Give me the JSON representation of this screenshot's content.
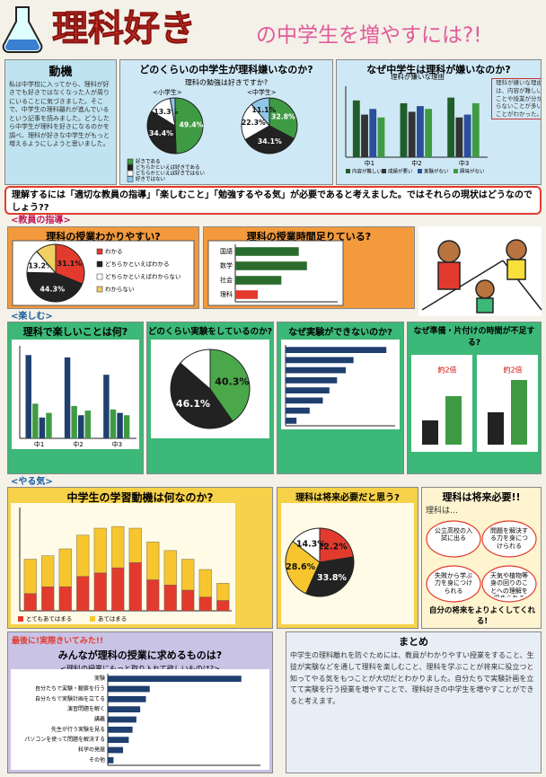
{
  "title": {
    "main": "理科好き",
    "rest": "の中学生を増やすには?!"
  },
  "motive": {
    "heading": "動機",
    "body": "私は中学校に入ってから、理科が好きでも好きではなくなった人が周りにいることに気づきました。そこで、中学生の理科離れが進んでいるという記事を読みました。どうしたら中学生が理科を好きになるのかを調べ、理科が好きな中学生がもっと増えるようにしようと思いました。"
  },
  "like": {
    "heading": "どのくらいの中学生が理科嫌いなのか?",
    "question": "理科の勉強は好きですか?",
    "colors": [
      "#3f9b43",
      "#222222",
      "#ffffff",
      "#8fc7e8"
    ],
    "pies": [
      {
        "label": "<小学生>",
        "slices": [
          {
            "value": 49.4,
            "label": "49.4%"
          },
          {
            "value": 34.4,
            "label": "34.4%"
          },
          {
            "value": 13.3,
            "label": "13.3%"
          },
          2.9
        ]
      },
      {
        "label": "<中学生>",
        "slices": [
          {
            "value": 32.8,
            "label": "32.8%"
          },
          {
            "value": 34.1,
            "label": "34.1%"
          },
          {
            "value": 22.3,
            "label": "22.3%"
          },
          {
            "value": 11.1,
            "label": "11.1%"
          }
        ]
      }
    ],
    "legend": [
      "好きである",
      "どちらかといえば好きである",
      "どちらかといえば好きではない",
      "好きではない"
    ]
  },
  "why": {
    "heading": "なぜ中学生は理科が嫌いなのか?",
    "chart_title": "理科が嫌いな理由",
    "categories": [
      "中1",
      "中2",
      "中3"
    ],
    "ylim": [
      0,
      50
    ],
    "series": [
      {
        "name": "内容が難しい",
        "color": "#1f5e2a",
        "values": [
          40,
          38,
          42
        ]
      },
      {
        "name": "成績が悪い",
        "color": "#333333",
        "values": [
          30,
          32,
          28
        ]
      },
      {
        "name": "実験がない",
        "color": "#2b4f9a",
        "values": [
          34,
          36,
          30
        ]
      },
      {
        "name": "興味がない",
        "color": "#3f9b43",
        "values": [
          28,
          34,
          38
        ]
      }
    ],
    "note": "理科が嫌いな理由は、内容が難しいことや授業が分からないことが多いことがわかった。"
  },
  "banner": "理解するには「適切な教員の指導」「楽しむこと」「勉強するやる気」が必要であると考えました。ではそれらの現状はどうなのでしょう??",
  "sections": [
    "<教員の指導>",
    "<楽しむ>",
    "<やる気>"
  ],
  "easy": {
    "heading": "理科の授業わかりやすい?",
    "colors": [
      "#e23b2e",
      "#222222",
      "#ffffff",
      "#f0d060"
    ],
    "slices": [
      {
        "value": 31.1,
        "label": "31.1%"
      },
      {
        "value": 44.3,
        "label": "44.3%"
      },
      {
        "value": 13.2,
        "label": "13.2%"
      },
      11.4
    ],
    "legend": [
      "わかる",
      "どちらかといえばわかる",
      "どちらかといえばわからない",
      "わからない"
    ]
  },
  "time": {
    "heading": "理科の授業時間足りている?",
    "categories": [
      "国語",
      "数学",
      "社会",
      "理科"
    ],
    "xlim": [
      0,
      100
    ],
    "values": [
      62,
      70,
      45,
      22
    ],
    "colors": [
      "#2a6b2e",
      "#2a6b2e",
      "#2a6b2e",
      "#e23b2e"
    ]
  },
  "fun": {
    "heading": "理科で楽しいことは何?",
    "categories": [
      "中1",
      "中2",
      "中3"
    ],
    "ylim": [
      0,
      80
    ],
    "series": [
      {
        "name": "実験",
        "color": "#1f3f6e",
        "values": [
          72,
          70,
          55
        ]
      },
      {
        "name": "観察",
        "color": "#3f9b43",
        "values": [
          30,
          28,
          25
        ]
      },
      {
        "name": "講義",
        "color": "#1f3f6e",
        "values": [
          18,
          20,
          22
        ]
      },
      {
        "name": "演習",
        "color": "#3f9b43",
        "values": [
          22,
          24,
          20
        ]
      }
    ]
  },
  "exp": {
    "heading": "どのくらい実験をしているのか?",
    "colors": [
      "#4aa84a",
      "#222222",
      "#ffffff"
    ],
    "slices": [
      {
        "value": 40.3,
        "label": "40.3%"
      },
      {
        "value": 46.1,
        "label": "46.1%"
      },
      13.6
    ]
  },
  "cannot": {
    "heading": "なぜ実験ができないのか?",
    "xlim": [
      0,
      100
    ],
    "values": [
      92,
      62,
      55,
      47,
      40,
      34,
      22,
      10
    ]
  },
  "prep": {
    "heading": "なぜ準備・片付けの時間が不足する?",
    "ylim": [
      0,
      10
    ],
    "charts": [
      {
        "values": [
          3,
          6
        ],
        "note": "約2倍"
      },
      {
        "values": [
          4,
          8
        ],
        "note": "約2倍"
      }
    ]
  },
  "motiv": {
    "heading": "中学生の学習動機は何なのか?",
    "ylim": [
      0,
      60
    ],
    "series": [
      {
        "name": "とてもあてはまる",
        "color": "#e23b2e",
        "values": [
          10,
          14,
          14,
          20,
          22,
          25,
          28,
          18,
          15,
          12,
          8,
          6
        ]
      },
      {
        "name": "あてはまる",
        "color": "#f7c62f",
        "values": [
          20,
          18,
          22,
          24,
          26,
          24,
          20,
          22,
          20,
          18,
          16,
          10
        ]
      }
    ]
  },
  "future": {
    "heading": "理科は将来必要だと思う?",
    "colors": [
      "#e23b2e",
      "#222222",
      "#f7c62f",
      "#ffffff"
    ],
    "slices": [
      {
        "value": 22.2,
        "label": "22.2%"
      },
      {
        "value": 33.8,
        "label": "33.8%"
      },
      {
        "value": 28.6,
        "label": "28.6%"
      },
      {
        "value": 14.3,
        "label": "14.3%"
      }
    ]
  },
  "need": {
    "heading": "理科は将来必要!!",
    "lead": "理科は…",
    "bubbles": [
      "公立高校の入試に出る",
      "問題を解決する力を身につけられる",
      "失敗から学ぶ力を身につけられる",
      "天気や植物等身の回りのことへの理解を深められる"
    ],
    "closing": "自分の将来をよりよくしてくれる!"
  },
  "request": {
    "kicker": "最後に!実際きいてみた!!",
    "heading": "みんなが理科の授業に求めるものは?",
    "sub": "<理科の授業にもっと取り入れて欲しいものは?>",
    "xlim": [
      0,
      80
    ],
    "categories": [
      "実験",
      "自分たちで実験・観察を行う",
      "自分たちで実験計画を立てる",
      "演習問題を解く",
      "講義",
      "先生が行う実験を見る",
      "パソコンを使って問題を解決する",
      "科学の発展",
      "その他"
    ],
    "values": [
      70,
      22,
      20,
      17,
      15,
      13,
      11,
      8,
      3
    ]
  },
  "summary": {
    "heading": "まとめ",
    "body": "中学生の理科離れを防ぐためには、教員がわかりやすい授業をすること、生徒が実験などを通して理科を楽しむこと、理科を学ぶことが将来に役立つと知ってやる気をもつことが大切だとわかりました。自分たちで実験計画を立てて実験を行う授業を増やすことで、理科好きの中学生を増やすことができると考えます。"
  }
}
